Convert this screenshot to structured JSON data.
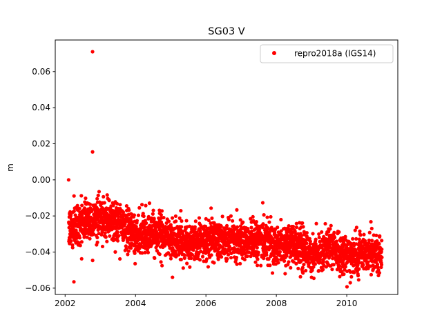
{
  "chart_data": {
    "type": "scatter",
    "title": "SG03 V",
    "xlabel": "",
    "ylabel": "m",
    "xlim": [
      2001.72,
      2011.45
    ],
    "ylim": [
      -0.0635,
      0.0775
    ],
    "xticks": [
      2002,
      2004,
      2006,
      2008,
      2010
    ],
    "xtick_labels": [
      "2002",
      "2004",
      "2006",
      "2008",
      "2010"
    ],
    "yticks": [
      -0.06,
      -0.04,
      -0.02,
      0.0,
      0.02,
      0.04,
      0.06
    ],
    "ytick_labels": [
      "−0.06",
      "−0.04",
      "−0.02",
      "0.00",
      "0.02",
      "0.04",
      "0.06"
    ],
    "grid": false,
    "legend_position": "upper right",
    "series": [
      {
        "name": "repro2018a (IGS14)",
        "color": "#ff0000",
        "marker": "circle",
        "trend": [
          [
            2002.1,
            -0.028
          ],
          [
            2002.5,
            -0.021
          ],
          [
            2003.0,
            -0.022
          ],
          [
            2003.5,
            -0.023
          ],
          [
            2004.0,
            -0.031
          ],
          [
            2004.5,
            -0.029
          ],
          [
            2005.0,
            -0.033
          ],
          [
            2005.5,
            -0.035
          ],
          [
            2006.0,
            -0.033
          ],
          [
            2006.5,
            -0.032
          ],
          [
            2007.0,
            -0.035
          ],
          [
            2007.5,
            -0.033
          ],
          [
            2008.0,
            -0.036
          ],
          [
            2008.5,
            -0.035
          ],
          [
            2009.0,
            -0.041
          ],
          [
            2009.5,
            -0.037
          ],
          [
            2010.0,
            -0.042
          ],
          [
            2010.5,
            -0.04
          ],
          [
            2011.0,
            -0.043
          ]
        ],
        "noise_sd": 0.0055,
        "outliers": [
          [
            2002.1,
            0.0
          ],
          [
            2002.78,
            0.071
          ],
          [
            2002.78,
            0.0155
          ],
          [
            2002.25,
            -0.0565
          ],
          [
            2005.05,
            -0.054
          ],
          [
            2008.25,
            -0.052
          ],
          [
            2010.1,
            -0.057
          ],
          [
            2009.0,
            -0.054
          ],
          [
            2010.9,
            -0.053
          ]
        ]
      }
    ]
  }
}
